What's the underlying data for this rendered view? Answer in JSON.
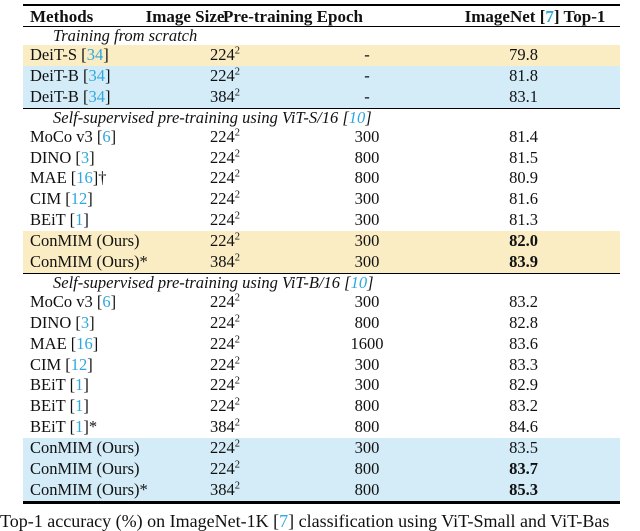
{
  "colors": {
    "citation_link": "#2FA7DF",
    "row_highlight_yellow": "#FAEDC4",
    "row_highlight_blue": "#D4ECF8"
  },
  "header": {
    "methods": "Methods",
    "image_size": "Image Size",
    "epoch": "Pre-training Epoch",
    "top1_pre": "ImageNet [",
    "top1_cite": "7",
    "top1_post": "] Top-1"
  },
  "sections": [
    {
      "t1": "Training from scratch",
      "cite": "",
      "t2": "",
      "rows": [
        {
          "m1": "DeiT-S [",
          "cite": "34",
          "m2": "]",
          "size": "224",
          "exp": "2",
          "epoch": "-",
          "top1": "79.8",
          "bold": false,
          "bg": "yellow"
        },
        {
          "m1": "DeiT-B [",
          "cite": "34",
          "m2": "]",
          "size": "224",
          "exp": "2",
          "epoch": "-",
          "top1": "81.8",
          "bold": false,
          "bg": "blue"
        },
        {
          "m1": "DeiT-B [",
          "cite": "34",
          "m2": "]",
          "size": "384",
          "exp": "2",
          "epoch": "-",
          "top1": "83.1",
          "bold": false,
          "bg": "blue"
        }
      ]
    },
    {
      "t1": "Self-supervised pre-training using ViT-S/16 [",
      "cite": "10",
      "t2": "]",
      "rows": [
        {
          "m1": "MoCo v3 [",
          "cite": "6",
          "m2": "]",
          "size": "224",
          "exp": "2",
          "epoch": "300",
          "top1": "81.4",
          "bold": false,
          "bg": ""
        },
        {
          "m1": "DINO [",
          "cite": "3",
          "m2": "]",
          "size": "224",
          "exp": "2",
          "epoch": "800",
          "top1": "81.5",
          "bold": false,
          "bg": ""
        },
        {
          "m1": "MAE [",
          "cite": "16",
          "m2": "]†",
          "size": "224",
          "exp": "2",
          "epoch": "800",
          "top1": "80.9",
          "bold": false,
          "bg": ""
        },
        {
          "m1": "CIM [",
          "cite": "12",
          "m2": "]",
          "size": "224",
          "exp": "2",
          "epoch": "300",
          "top1": "81.6",
          "bold": false,
          "bg": ""
        },
        {
          "m1": "BEiT [",
          "cite": "1",
          "m2": "]",
          "size": "224",
          "exp": "2",
          "epoch": "300",
          "top1": "81.3",
          "bold": false,
          "bg": ""
        },
        {
          "m1": "ConMIM (Ours)",
          "cite": "",
          "m2": "",
          "size": "224",
          "exp": "2",
          "epoch": "300",
          "top1": "82.0",
          "bold": true,
          "bg": "yellow"
        },
        {
          "m1": "ConMIM (Ours)*",
          "cite": "",
          "m2": "",
          "size": "384",
          "exp": "2",
          "epoch": "300",
          "top1": "83.9",
          "bold": true,
          "bg": "yellow"
        }
      ]
    },
    {
      "t1": "Self-supervised pre-training using ViT-B/16 [",
      "cite": "10",
      "t2": "]",
      "rows": [
        {
          "m1": "MoCo v3 [",
          "cite": "6",
          "m2": "]",
          "size": "224",
          "exp": "2",
          "epoch": "300",
          "top1": "83.2",
          "bold": false,
          "bg": ""
        },
        {
          "m1": "DINO [",
          "cite": "3",
          "m2": "]",
          "size": "224",
          "exp": "2",
          "epoch": "800",
          "top1": "82.8",
          "bold": false,
          "bg": ""
        },
        {
          "m1": "MAE [",
          "cite": "16",
          "m2": "]",
          "size": "224",
          "exp": "2",
          "epoch": "1600",
          "top1": "83.6",
          "bold": false,
          "bg": ""
        },
        {
          "m1": "CIM [",
          "cite": "12",
          "m2": "]",
          "size": "224",
          "exp": "2",
          "epoch": "300",
          "top1": "83.3",
          "bold": false,
          "bg": ""
        },
        {
          "m1": "BEiT [",
          "cite": "1",
          "m2": "]",
          "size": "224",
          "exp": "2",
          "epoch": "300",
          "top1": "82.9",
          "bold": false,
          "bg": ""
        },
        {
          "m1": "BEiT [",
          "cite": "1",
          "m2": "]",
          "size": "224",
          "exp": "2",
          "epoch": "800",
          "top1": "83.2",
          "bold": false,
          "bg": ""
        },
        {
          "m1": "BEiT [",
          "cite": "1",
          "m2": "]*",
          "size": "384",
          "exp": "2",
          "epoch": "800",
          "top1": "84.6",
          "bold": false,
          "bg": ""
        },
        {
          "m1": "ConMIM (Ours)",
          "cite": "",
          "m2": "",
          "size": "224",
          "exp": "2",
          "epoch": "300",
          "top1": "83.5",
          "bold": false,
          "bg": "blue"
        },
        {
          "m1": "ConMIM (Ours)",
          "cite": "",
          "m2": "",
          "size": "224",
          "exp": "2",
          "epoch": "800",
          "top1": "83.7",
          "bold": true,
          "bg": "blue"
        },
        {
          "m1": "ConMIM (Ours)*",
          "cite": "",
          "m2": "",
          "size": "384",
          "exp": "2",
          "epoch": "800",
          "top1": "85.3",
          "bold": true,
          "bg": "blue"
        }
      ]
    }
  ],
  "caption": {
    "c1": "Top-1 accuracy (%) on ImageNet-1K [",
    "cite": "7",
    "c2": "] classification using ViT-Small and ViT-Bas"
  }
}
